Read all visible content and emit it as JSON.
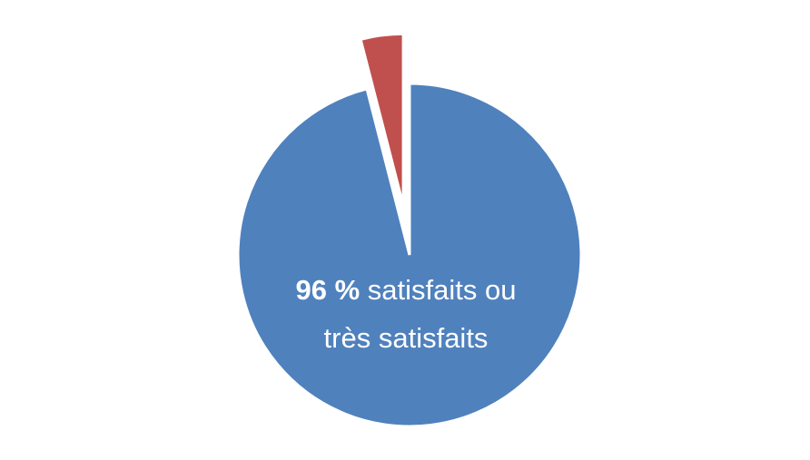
{
  "chart_data": {
    "type": "pie",
    "slices": [
      {
        "label": "satisfaits ou très satisfaits",
        "value": 96,
        "color": "#4F81BD",
        "exploded": false
      },
      {
        "label": "",
        "value": 4,
        "color": "#C0504D",
        "exploded": true
      }
    ],
    "start_angle": "12 o'clock",
    "direction": "clockwise",
    "annotation": {
      "value_text": "96 %",
      "line1_rest": " satisfaits ou",
      "line2": "très satisfaits"
    }
  }
}
